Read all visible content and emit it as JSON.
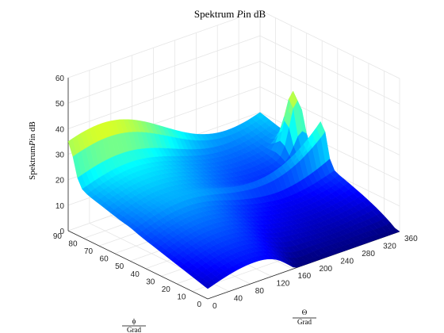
{
  "chart_data": {
    "type": "surface",
    "title_prefix": "Spektrum ",
    "title_symbol": "P",
    "title_suffix": "in dB",
    "zlabel_prefix": "Spektrum",
    "zlabel_symbol": "P",
    "zlabel_suffix": "in dB",
    "xlabel_num": "Θ",
    "xlabel_den": "Grad",
    "ylabel_num": "ϕ",
    "ylabel_den": "Grad",
    "x_ticks": [
      "0",
      "40",
      "80",
      "120",
      "160",
      "200",
      "240",
      "280",
      "320",
      "360"
    ],
    "y_ticks": [
      "0",
      "10",
      "20",
      "30",
      "40",
      "50",
      "60",
      "70",
      "80",
      "90"
    ],
    "z_ticks": [
      "0",
      "10",
      "20",
      "30",
      "40",
      "50",
      "60"
    ],
    "xlim": [
      0,
      360
    ],
    "ylim": [
      0,
      90
    ],
    "zlim": [
      0,
      60
    ],
    "grid": true,
    "colormap": "jet",
    "peaks": [
      {
        "theta": 350,
        "phi": 65,
        "db": 55
      },
      {
        "theta": 360,
        "phi": 50,
        "db": 40
      },
      {
        "theta": 0,
        "phi": 90,
        "db": 40
      }
    ],
    "ridges": [
      {
        "phi": 90,
        "description_db_range": [
          22,
          40
        ]
      },
      {
        "phi": 50,
        "description_db_range": [
          18,
          40
        ]
      }
    ],
    "valleys": [
      {
        "theta": 180,
        "phi": 0,
        "db": 0
      },
      {
        "theta": 360,
        "phi": 0,
        "db": 0
      }
    ]
  }
}
